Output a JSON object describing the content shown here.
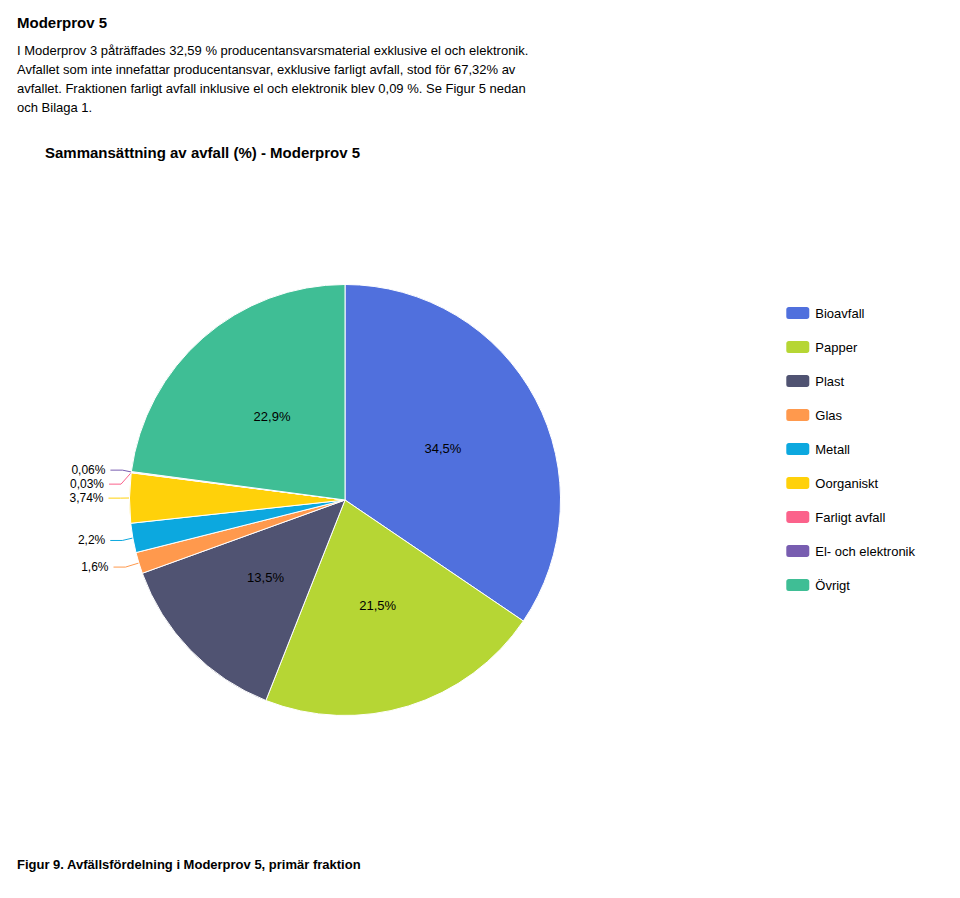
{
  "chart_data": {
    "type": "pie",
    "title": "Sammansättning av avfall (%) - Moderprov 5",
    "annotations": [
      "Moderprov 5",
      "I Moderprov 3 påträffades 32,59 % producentansvarsmaterial exklusive el och elektronik.\nAvfallet som inte innefattar producentansvar, exklusive farligt avfall, stod för 67,32% av\navfallet. Fraktionen farligt avfall inklusive el och elektronik blev 0,09 %. Se Figur 5 nedan\noch Bilaga 1.",
      "Figur 9. Avfällsfördelning i Moderprov 5, primär fraktion"
    ],
    "categories": [
      "Bioavfall",
      "Papper",
      "Plast",
      "Glas",
      "Metall",
      "Oorganiskt",
      "Farligt avfall",
      "El- och elektronik",
      "Övrigt"
    ],
    "values": [
      34.5,
      21.5,
      13.5,
      1.6,
      2.2,
      3.74,
      0.03,
      0.06,
      22.9
    ],
    "value_labels": [
      "34,5%",
      "21,5%",
      "13,5%",
      "1,6%",
      "2,2%",
      "3,74%",
      "0,03%",
      "0,06%",
      "22,9%"
    ],
    "data_labels": true,
    "legend": "right"
  }
}
